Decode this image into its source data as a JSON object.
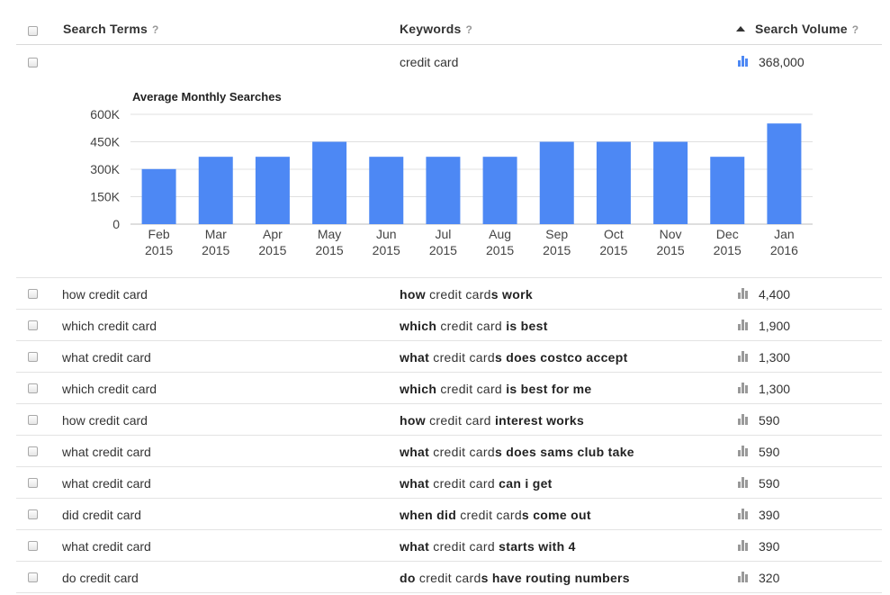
{
  "header": {
    "search_terms": "Search Terms",
    "keywords": "Keywords",
    "search_volume": "Search Volume",
    "help": "?"
  },
  "top_row": {
    "keyword": "credit card",
    "volume": "368,000"
  },
  "chart_data": {
    "type": "bar",
    "title": "Average Monthly Searches",
    "categories": [
      [
        "Feb",
        "2015"
      ],
      [
        "Mar",
        "2015"
      ],
      [
        "Apr",
        "2015"
      ],
      [
        "May",
        "2015"
      ],
      [
        "Jun",
        "2015"
      ],
      [
        "Jul",
        "2015"
      ],
      [
        "Aug",
        "2015"
      ],
      [
        "Sep",
        "2015"
      ],
      [
        "Oct",
        "2015"
      ],
      [
        "Nov",
        "2015"
      ],
      [
        "Dec",
        "2015"
      ],
      [
        "Jan",
        "2016"
      ]
    ],
    "values": [
      301000,
      368000,
      368000,
      450000,
      368000,
      368000,
      368000,
      450000,
      450000,
      450000,
      368000,
      550000
    ],
    "ylim": [
      0,
      600000
    ],
    "yticks": [
      "0",
      "150K",
      "300K",
      "450K",
      "600K"
    ],
    "color": "#4d88f4",
    "grid": true
  },
  "rows": [
    {
      "term": "how credit card",
      "kw_parts": [
        [
          "b",
          "how"
        ],
        [
          "n",
          " credit card"
        ],
        [
          "b",
          "s work"
        ]
      ],
      "volume": "4,400"
    },
    {
      "term": "which credit card",
      "kw_parts": [
        [
          "b",
          "which"
        ],
        [
          "n",
          " credit card"
        ],
        [
          "b",
          " is best"
        ]
      ],
      "volume": "1,900"
    },
    {
      "term": "what credit card",
      "kw_parts": [
        [
          "b",
          "what"
        ],
        [
          "n",
          " credit card"
        ],
        [
          "b",
          "s does costco accept"
        ]
      ],
      "volume": "1,300"
    },
    {
      "term": "which credit card",
      "kw_parts": [
        [
          "b",
          "which"
        ],
        [
          "n",
          " credit card"
        ],
        [
          "b",
          " is best for me"
        ]
      ],
      "volume": "1,300"
    },
    {
      "term": "how credit card",
      "kw_parts": [
        [
          "b",
          "how"
        ],
        [
          "n",
          " credit card"
        ],
        [
          "b",
          " interest works"
        ]
      ],
      "volume": "590"
    },
    {
      "term": "what credit card",
      "kw_parts": [
        [
          "b",
          "what"
        ],
        [
          "n",
          " credit card"
        ],
        [
          "b",
          "s does sams club take"
        ]
      ],
      "volume": "590"
    },
    {
      "term": "what credit card",
      "kw_parts": [
        [
          "b",
          "what"
        ],
        [
          "n",
          " credit card"
        ],
        [
          "b",
          " can i get"
        ]
      ],
      "volume": "590"
    },
    {
      "term": "did credit card",
      "kw_parts": [
        [
          "b",
          "when did"
        ],
        [
          "n",
          " credit card"
        ],
        [
          "b",
          "s come out"
        ]
      ],
      "volume": "390"
    },
    {
      "term": "what credit card",
      "kw_parts": [
        [
          "b",
          "what"
        ],
        [
          "n",
          " credit card"
        ],
        [
          "b",
          " starts with 4"
        ]
      ],
      "volume": "390"
    },
    {
      "term": "do credit card",
      "kw_parts": [
        [
          "b",
          "do"
        ],
        [
          "n",
          " credit card"
        ],
        [
          "b",
          "s have routing numbers"
        ]
      ],
      "volume": "320"
    }
  ],
  "icons": {
    "volume_active": "bar-chart-icon-blue",
    "volume_inactive": "bar-chart-icon-gray"
  },
  "colors": {
    "accent": "#4d88f4",
    "icon_gray": "#999999"
  }
}
